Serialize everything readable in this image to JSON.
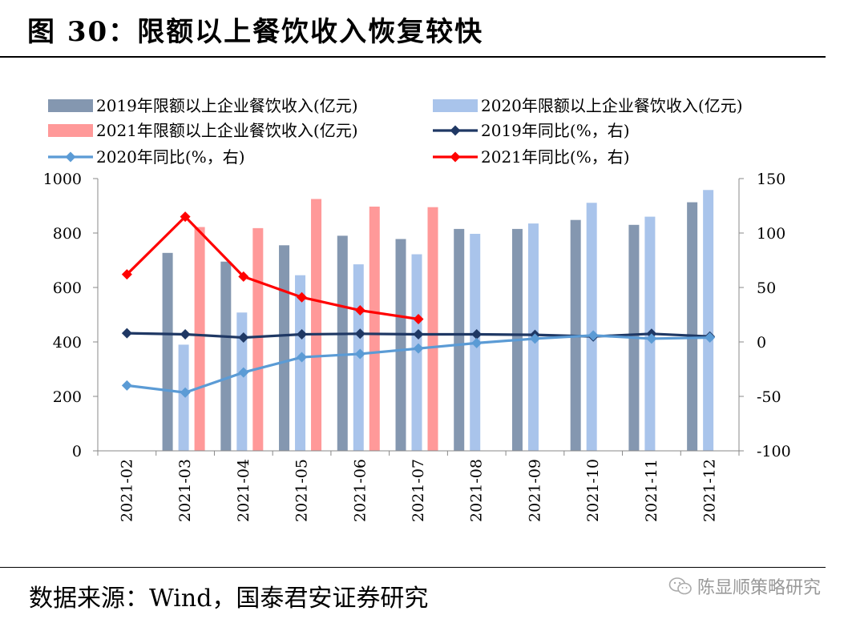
{
  "header": {
    "title": "图 30：限额以上餐饮收入恢复较快"
  },
  "footer": {
    "source": "数据来源：Wind，国泰君安证券研究",
    "watermark": "陈显顺策略研究"
  },
  "chart_data": {
    "type": "bar+line",
    "categories": [
      "2021-02",
      "2021-03",
      "2021-04",
      "2021-05",
      "2021-06",
      "2021-07",
      "2021-08",
      "2021-09",
      "2021-10",
      "2021-11",
      "2021-12"
    ],
    "bar_series": [
      {
        "name": "2019年限额以上企业餐饮收入(亿元)",
        "color": "#8497b0",
        "values": [
          null,
          727,
          695,
          755,
          790,
          778,
          815,
          815,
          848,
          830,
          913
        ]
      },
      {
        "name": "2020年限额以上企业餐饮收入(亿元)",
        "color": "#a9c4eb",
        "values": [
          null,
          390,
          508,
          645,
          685,
          722,
          797,
          835,
          911,
          860,
          958
        ]
      },
      {
        "name": "2021年限额以上企业餐饮收入(亿元)",
        "color": "#ff9999",
        "values": [
          null,
          822,
          818,
          925,
          897,
          895,
          null,
          null,
          null,
          null,
          null
        ]
      }
    ],
    "line_series": [
      {
        "name": "2019年同比(%，右)",
        "color": "#1f3864",
        "marker": "diamond",
        "values": [
          8,
          7,
          4,
          7,
          7.5,
          7,
          7,
          6.5,
          5,
          7.5,
          5
        ]
      },
      {
        "name": "2020年同比(%，右)",
        "color": "#5b9bd5",
        "marker": "diamond",
        "values": [
          -40,
          -46.5,
          -28,
          -14,
          -11,
          -6,
          -1,
          3,
          6,
          3,
          4
        ]
      },
      {
        "name": "2021年同比(%，右)",
        "color": "#ff0000",
        "marker": "diamond",
        "values": [
          62,
          115,
          60,
          41,
          29,
          21,
          null,
          null,
          null,
          null,
          null
        ]
      }
    ],
    "y_left": {
      "min": 0,
      "max": 1000,
      "ticks": [
        "0",
        "200",
        "400",
        "600",
        "800",
        "1000"
      ]
    },
    "y_right": {
      "min": -100,
      "max": 150,
      "ticks": [
        "-100",
        "-50",
        "0",
        "50",
        "100",
        "150"
      ]
    },
    "grid": false,
    "legend": "top"
  }
}
